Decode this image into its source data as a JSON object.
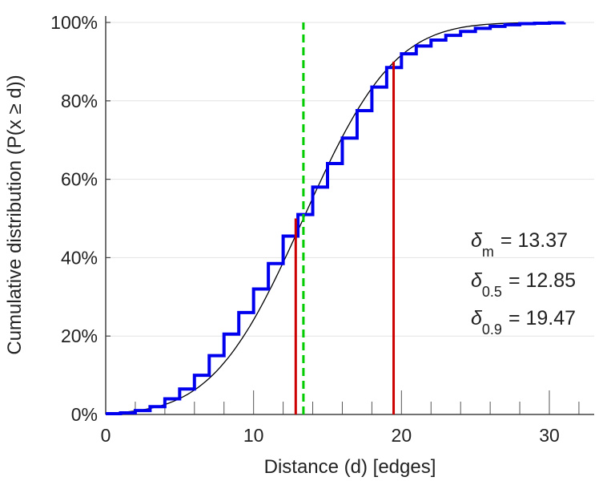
{
  "chart_data": {
    "type": "line",
    "xlabel": "Distance (d) [edges]",
    "ylabel": "Cumulative distribution (P(x ≥ d))",
    "xlim": [
      0,
      33
    ],
    "ylim": [
      0,
      1
    ],
    "x_ticks": [
      0,
      10,
      20,
      30
    ],
    "x_tick_labels": [
      "0",
      "10",
      "20",
      "30"
    ],
    "y_ticks": [
      0,
      0.2,
      0.4,
      0.6,
      0.8,
      1.0
    ],
    "y_tick_labels": [
      "0%",
      "20%",
      "40%",
      "60%",
      "80%",
      "100%"
    ],
    "grid": "horizontal",
    "series": [
      {
        "kind": "step",
        "color": "#0000ee",
        "x": [
          0,
          1,
          2,
          3,
          4,
          5,
          6,
          7,
          8,
          9,
          10,
          11,
          12,
          13,
          14,
          15,
          16,
          17,
          18,
          19,
          20,
          21,
          22,
          23,
          24,
          25,
          26,
          27,
          28,
          29,
          30,
          31
        ],
        "y": [
          0.002,
          0.004,
          0.01,
          0.02,
          0.04,
          0.065,
          0.1,
          0.15,
          0.205,
          0.26,
          0.32,
          0.385,
          0.455,
          0.51,
          0.58,
          0.64,
          0.705,
          0.775,
          0.835,
          0.885,
          0.92,
          0.94,
          0.955,
          0.967,
          0.977,
          0.985,
          0.99,
          0.994,
          0.997,
          0.998,
          0.999,
          1.0
        ]
      },
      {
        "kind": "smooth",
        "color": "#000000",
        "mean": 13.37,
        "sd": 4.8
      }
    ],
    "vlines": [
      {
        "x": 13.37,
        "color": "#00cc00",
        "style": "dashed",
        "to": 1.0
      },
      {
        "x": 12.85,
        "color": "#cc0000",
        "style": "solid",
        "to": 0.5
      },
      {
        "x": 19.47,
        "color": "#cc0000",
        "style": "solid",
        "to": 0.9
      }
    ],
    "annotations": [
      {
        "symbol": "δ",
        "sub": "m",
        "text": "= 13.37"
      },
      {
        "symbol": "δ",
        "sub": "0.5",
        "text": "= 12.85"
      },
      {
        "symbol": "δ",
        "sub": "0.9",
        "text": "= 19.47"
      }
    ]
  }
}
